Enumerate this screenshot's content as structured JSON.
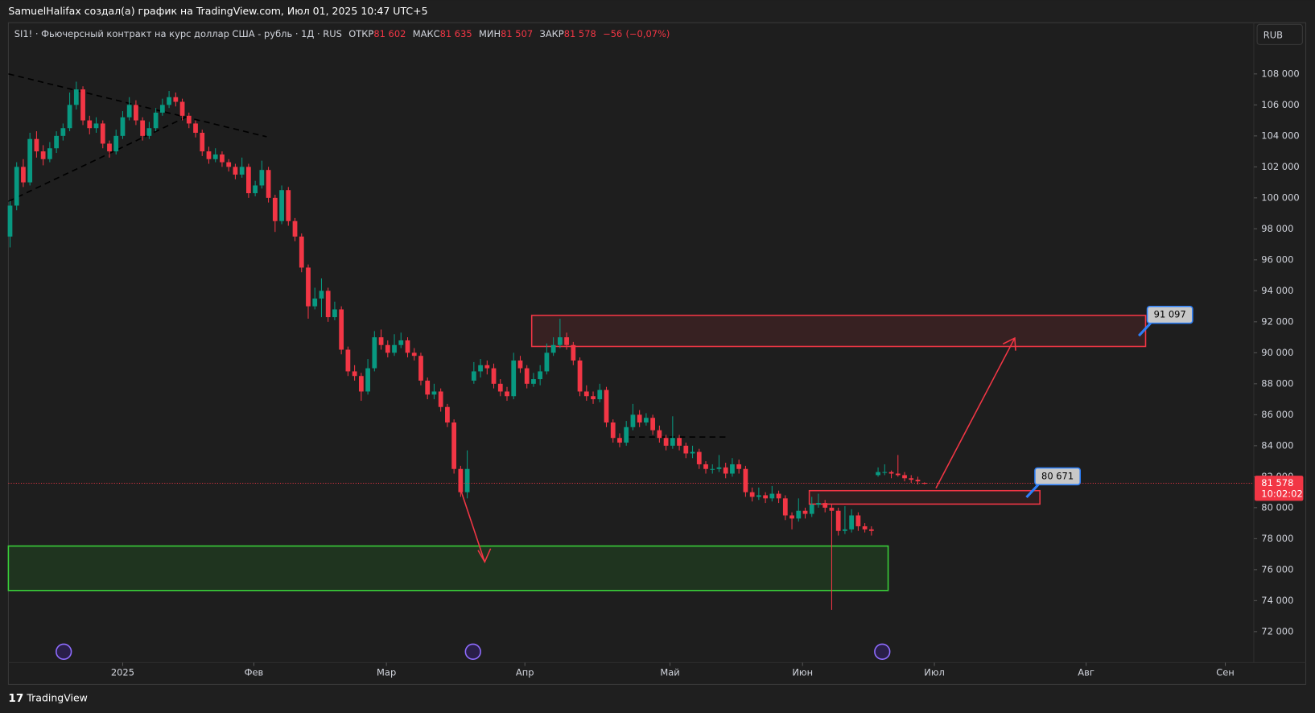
{
  "chart_data": {
    "type": "candlestick",
    "caption": "SamuelHalifax создал(а) график на TradingView.com, Июл 01, 2025 10:47 UTC+5",
    "title": "SI1! · Фьючерсный контракт на курс доллар США - рубль · 1Д · RUS",
    "legend": {
      "open_label": "ОТКР",
      "open": {
        "value": 81602,
        "label": "81 602"
      },
      "high_label": "МАКС",
      "high": {
        "value": 81635,
        "label": "81 635"
      },
      "low_label": "МИН",
      "low": {
        "value": 81507,
        "label": "81 507"
      },
      "close_label": "ЗАКР",
      "close": {
        "value": 81578,
        "label": "81 578"
      },
      "change": {
        "value": -56,
        "label": "−56"
      },
      "change_pct": {
        "value": -0.07,
        "label": "(−0,07%)"
      }
    },
    "currency": "RUB",
    "brand": "TradingView",
    "up_color": "#089981",
    "down_color": "#f23645",
    "ohlc": [
      [
        97500,
        99800,
        96800,
        99500
      ],
      [
        99500,
        102300,
        99200,
        102000
      ],
      [
        102000,
        102500,
        100700,
        101000
      ],
      [
        101000,
        104200,
        100800,
        103800
      ],
      [
        103800,
        104300,
        102600,
        103000
      ],
      [
        103000,
        103400,
        102100,
        102500
      ],
      [
        102500,
        103600,
        102300,
        103200
      ],
      [
        103200,
        104300,
        102900,
        104000
      ],
      [
        104000,
        104800,
        103700,
        104500
      ],
      [
        104500,
        106800,
        104300,
        106000
      ],
      [
        106000,
        107500,
        105700,
        107000
      ],
      [
        107000,
        107200,
        104700,
        105000
      ],
      [
        105000,
        105300,
        104100,
        104500
      ],
      [
        104500,
        105200,
        104200,
        104800
      ],
      [
        104800,
        105000,
        103200,
        103500
      ],
      [
        103500,
        103700,
        102600,
        103000
      ],
      [
        103000,
        104400,
        102800,
        104000
      ],
      [
        104000,
        105600,
        103800,
        105200
      ],
      [
        105200,
        106500,
        105000,
        106000
      ],
      [
        106000,
        106300,
        104700,
        105000
      ],
      [
        105000,
        105200,
        103700,
        104000
      ],
      [
        104000,
        104900,
        103800,
        104500
      ],
      [
        104500,
        105800,
        104300,
        105500
      ],
      [
        105500,
        106400,
        105300,
        106000
      ],
      [
        106000,
        106900,
        105800,
        106500
      ],
      [
        106500,
        106800,
        105900,
        106200
      ],
      [
        106200,
        106400,
        105000,
        105300
      ],
      [
        105300,
        105500,
        104500,
        104800
      ],
      [
        104800,
        105000,
        103900,
        104200
      ],
      [
        104200,
        104400,
        102700,
        103000
      ],
      [
        103000,
        103300,
        102200,
        102500
      ],
      [
        102500,
        103200,
        102300,
        102800
      ],
      [
        102800,
        103000,
        102000,
        102300
      ],
      [
        102300,
        102500,
        101700,
        102000
      ],
      [
        102000,
        102200,
        101200,
        101500
      ],
      [
        101500,
        102600,
        101300,
        102000
      ],
      [
        102000,
        102200,
        100000,
        100300
      ],
      [
        100300,
        101100,
        100100,
        100800
      ],
      [
        100800,
        102400,
        100600,
        101800
      ],
      [
        101800,
        102000,
        99700,
        100000
      ],
      [
        100000,
        100200,
        97800,
        98500
      ],
      [
        98500,
        100800,
        98300,
        100500
      ],
      [
        100500,
        100700,
        98200,
        98500
      ],
      [
        98500,
        98700,
        97200,
        97500
      ],
      [
        97500,
        97700,
        95200,
        95500
      ],
      [
        95500,
        95700,
        92200,
        93000
      ],
      [
        93000,
        94200,
        92800,
        93500
      ],
      [
        93500,
        94800,
        92300,
        94000
      ],
      [
        94000,
        94200,
        92000,
        92300
      ],
      [
        92300,
        93300,
        92100,
        92800
      ],
      [
        92800,
        93000,
        89900,
        90200
      ],
      [
        90200,
        90400,
        88500,
        88800
      ],
      [
        88800,
        89200,
        88200,
        88500
      ],
      [
        88500,
        88700,
        86900,
        87500
      ],
      [
        87500,
        89600,
        87300,
        89000
      ],
      [
        89000,
        91400,
        88800,
        91000
      ],
      [
        91000,
        91500,
        90200,
        90500
      ],
      [
        90500,
        90800,
        89700,
        90000
      ],
      [
        90000,
        91200,
        89800,
        90500
      ],
      [
        90500,
        91300,
        90300,
        90800
      ],
      [
        90800,
        91000,
        89700,
        90000
      ],
      [
        90000,
        90300,
        89500,
        89800
      ],
      [
        89800,
        90000,
        87900,
        88200
      ],
      [
        88200,
        88400,
        87000,
        87300
      ],
      [
        87300,
        88000,
        87000,
        87500
      ],
      [
        87500,
        87700,
        86200,
        86500
      ],
      [
        86500,
        86700,
        85200,
        85500
      ],
      [
        85500,
        85700,
        82200,
        82500
      ],
      [
        82500,
        82700,
        80700,
        81000
      ],
      [
        81000,
        83700,
        80600,
        82500
      ],
      [
        88200,
        89400,
        88000,
        88800
      ],
      [
        88800,
        89600,
        88400,
        89200
      ],
      [
        89200,
        89500,
        88600,
        89000
      ],
      [
        89000,
        89300,
        87700,
        88000
      ],
      [
        88000,
        88300,
        87200,
        87500
      ],
      [
        87500,
        87800,
        86900,
        87200
      ],
      [
        87200,
        90000,
        87000,
        89500
      ],
      [
        89500,
        89800,
        88700,
        89000
      ],
      [
        89000,
        89200,
        87700,
        88000
      ],
      [
        88000,
        88700,
        87800,
        88300
      ],
      [
        88300,
        89200,
        87900,
        88800
      ],
      [
        88800,
        90600,
        88600,
        90000
      ],
      [
        90000,
        91000,
        89800,
        90500
      ],
      [
        90500,
        92200,
        90300,
        91000
      ],
      [
        91000,
        91300,
        90200,
        90500
      ],
      [
        90500,
        90700,
        89200,
        89500
      ],
      [
        89500,
        89700,
        87200,
        87500
      ],
      [
        87500,
        87900,
        86900,
        87200
      ],
      [
        87200,
        87500,
        86700,
        87000
      ],
      [
        87000,
        88000,
        86800,
        87600
      ],
      [
        87600,
        87800,
        85200,
        85500
      ],
      [
        85500,
        85700,
        84200,
        84500
      ],
      [
        84500,
        84800,
        83900,
        84200
      ],
      [
        84200,
        85600,
        84000,
        85200
      ],
      [
        85200,
        86700,
        85000,
        86000
      ],
      [
        86000,
        86300,
        85200,
        85500
      ],
      [
        85500,
        86100,
        85300,
        85800
      ],
      [
        85800,
        86000,
        84700,
        85000
      ],
      [
        85000,
        85300,
        84200,
        84500
      ],
      [
        84500,
        84700,
        83700,
        84000
      ],
      [
        84000,
        85900,
        83800,
        84500
      ],
      [
        84500,
        84700,
        83700,
        84000
      ],
      [
        84000,
        84200,
        83200,
        83500
      ],
      [
        83500,
        84000,
        83200,
        83600
      ],
      [
        83600,
        83800,
        82500,
        82800
      ],
      [
        82800,
        83000,
        82200,
        82500
      ],
      [
        82500,
        82800,
        82200,
        82500
      ],
      [
        82500,
        83400,
        82300,
        82600
      ],
      [
        82600,
        82900,
        81900,
        82200
      ],
      [
        82200,
        83200,
        82000,
        82800
      ],
      [
        82800,
        83100,
        82200,
        82500
      ],
      [
        82500,
        82700,
        80700,
        81000
      ],
      [
        81000,
        81300,
        80400,
        80700
      ],
      [
        80700,
        81300,
        80500,
        80800
      ],
      [
        80800,
        81000,
        80300,
        80600
      ],
      [
        80600,
        81400,
        80400,
        80900
      ],
      [
        80900,
        81100,
        80300,
        80600
      ],
      [
        80600,
        80800,
        79200,
        79500
      ],
      [
        79500,
        79700,
        78600,
        79300
      ],
      [
        79300,
        80600,
        79100,
        79800
      ],
      [
        79800,
        80000,
        79300,
        79600
      ],
      [
        79600,
        80700,
        79400,
        80200
      ],
      [
        80200,
        80900,
        80000,
        80300
      ],
      [
        80300,
        80500,
        79700,
        80000
      ],
      [
        80000,
        80200,
        73400,
        79800
      ],
      [
        79800,
        80000,
        78200,
        78500
      ],
      [
        78500,
        80100,
        78300,
        78600
      ],
      [
        78600,
        79900,
        78400,
        79500
      ],
      [
        79500,
        79700,
        78500,
        78800
      ],
      [
        78800,
        79000,
        78400,
        78600
      ],
      [
        78600,
        78800,
        78200,
        78500
      ],
      [
        82100,
        82600,
        82000,
        82300
      ],
      [
        82300,
        82800,
        82100,
        82300
      ],
      [
        82300,
        82400,
        81900,
        82200
      ],
      [
        82200,
        83400,
        82000,
        82100
      ],
      [
        82100,
        82300,
        81700,
        81900
      ],
      [
        81900,
        82100,
        81600,
        81800
      ],
      [
        81800,
        82000,
        81500,
        81700
      ],
      [
        81602,
        81635,
        81507,
        81578
      ]
    ],
    "xlim": [
      -0.25,
      187.7
    ],
    "xticks": [
      {
        "value": 17,
        "label": "2025"
      },
      {
        "value": 36.8,
        "label": "Фев"
      },
      {
        "value": 56.8,
        "label": "Мар"
      },
      {
        "value": 77.7,
        "label": "Апр"
      },
      {
        "value": 99.6,
        "label": "Май"
      },
      {
        "value": 119.6,
        "label": "Июн"
      },
      {
        "value": 139.5,
        "label": "Июл"
      },
      {
        "value": 162.4,
        "label": "Авг"
      },
      {
        "value": 183.4,
        "label": "Сен"
      }
    ],
    "ylim": [
      70000,
      111250
    ],
    "yticks": [
      {
        "value": 72000,
        "label": "72 000"
      },
      {
        "value": 74000,
        "label": "74 000"
      },
      {
        "value": 76000,
        "label": "76 000"
      },
      {
        "value": 78000,
        "label": "78 000"
      },
      {
        "value": 80000,
        "label": "80 000"
      },
      {
        "value": 82000,
        "label": "82 000"
      },
      {
        "value": 84000,
        "label": "84 000"
      },
      {
        "value": 86000,
        "label": "86 000"
      },
      {
        "value": 88000,
        "label": "88 000"
      },
      {
        "value": 90000,
        "label": "90 000"
      },
      {
        "value": 92000,
        "label": "92 000"
      },
      {
        "value": 94000,
        "label": "94 000"
      },
      {
        "value": 96000,
        "label": "96 000"
      },
      {
        "value": 98000,
        "label": "98 000"
      },
      {
        "value": 100000,
        "label": "100 000"
      },
      {
        "value": 102000,
        "label": "102 000"
      },
      {
        "value": 104000,
        "label": "104 000"
      },
      {
        "value": 106000,
        "label": "106 000"
      },
      {
        "value": 108000,
        "label": "108 000"
      }
    ],
    "grid": false,
    "last_price": {
      "value": 81578,
      "label": "81 578"
    },
    "countdown": "10:02:02",
    "annotations": [
      {
        "value": 91097,
        "label": "91 097"
      },
      {
        "value": 80671,
        "label": "80 671"
      }
    ]
  }
}
